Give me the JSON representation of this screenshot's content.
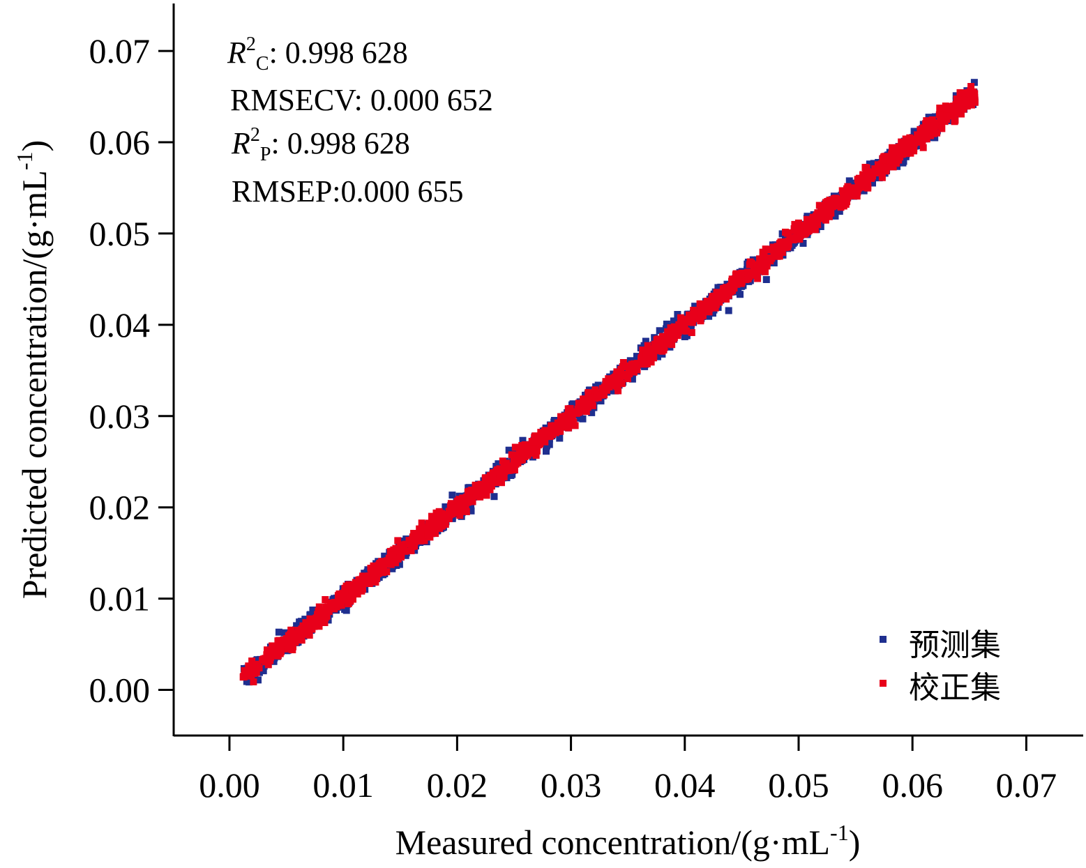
{
  "chart_data": {
    "type": "scatter",
    "xlabel": "Measured concentration/(g·mL-1)",
    "ylabel": "Predicted concentration/(g·mL-1)",
    "xlabel_parts": {
      "main": "Measured concentration/(g·mL",
      "sup": "-1",
      "end": ")"
    },
    "ylabel_parts": {
      "main": "Predicted concentration/(g·mL",
      "sup": "-1",
      "end": ")"
    },
    "xlim": [
      -0.0049,
      0.075
    ],
    "ylim": [
      -0.005,
      0.0752
    ],
    "xticks": [
      "0.00",
      "0.01",
      "0.02",
      "0.03",
      "0.04",
      "0.05",
      "0.06",
      "0.07"
    ],
    "yticks": [
      "0.00",
      "0.01",
      "0.02",
      "0.03",
      "0.04",
      "0.05",
      "0.06",
      "0.07"
    ],
    "tick_values": [
      0.0,
      0.01,
      0.02,
      0.03,
      0.04,
      0.05,
      0.06,
      0.07
    ],
    "grid": false,
    "legend_position": "bottom-right",
    "annotations": [
      {
        "sym": "R",
        "sup": "2",
        "sub": "C",
        "rest": ": 0.998 628"
      },
      {
        "text": "RMSECV: 0.000 652"
      },
      {
        "sym": "R",
        "sup": "2",
        "sub": "P",
        "rest": ": 0.998 628"
      },
      {
        "text": "RMSEP:0.000 655"
      }
    ],
    "series": [
      {
        "name": "预测集",
        "color": "#1f2f8f",
        "x_range": [
          0.0012,
          0.0655
        ],
        "fit": {
          "slope": 0.998,
          "intercept": 0.0001
        },
        "n_points": 1600
      },
      {
        "name": "校正集",
        "color": "#e8001a",
        "x_range": [
          0.0012,
          0.0655
        ],
        "fit": {
          "slope": 0.998,
          "intercept": 0.0001
        },
        "n_points": 1600
      }
    ]
  }
}
